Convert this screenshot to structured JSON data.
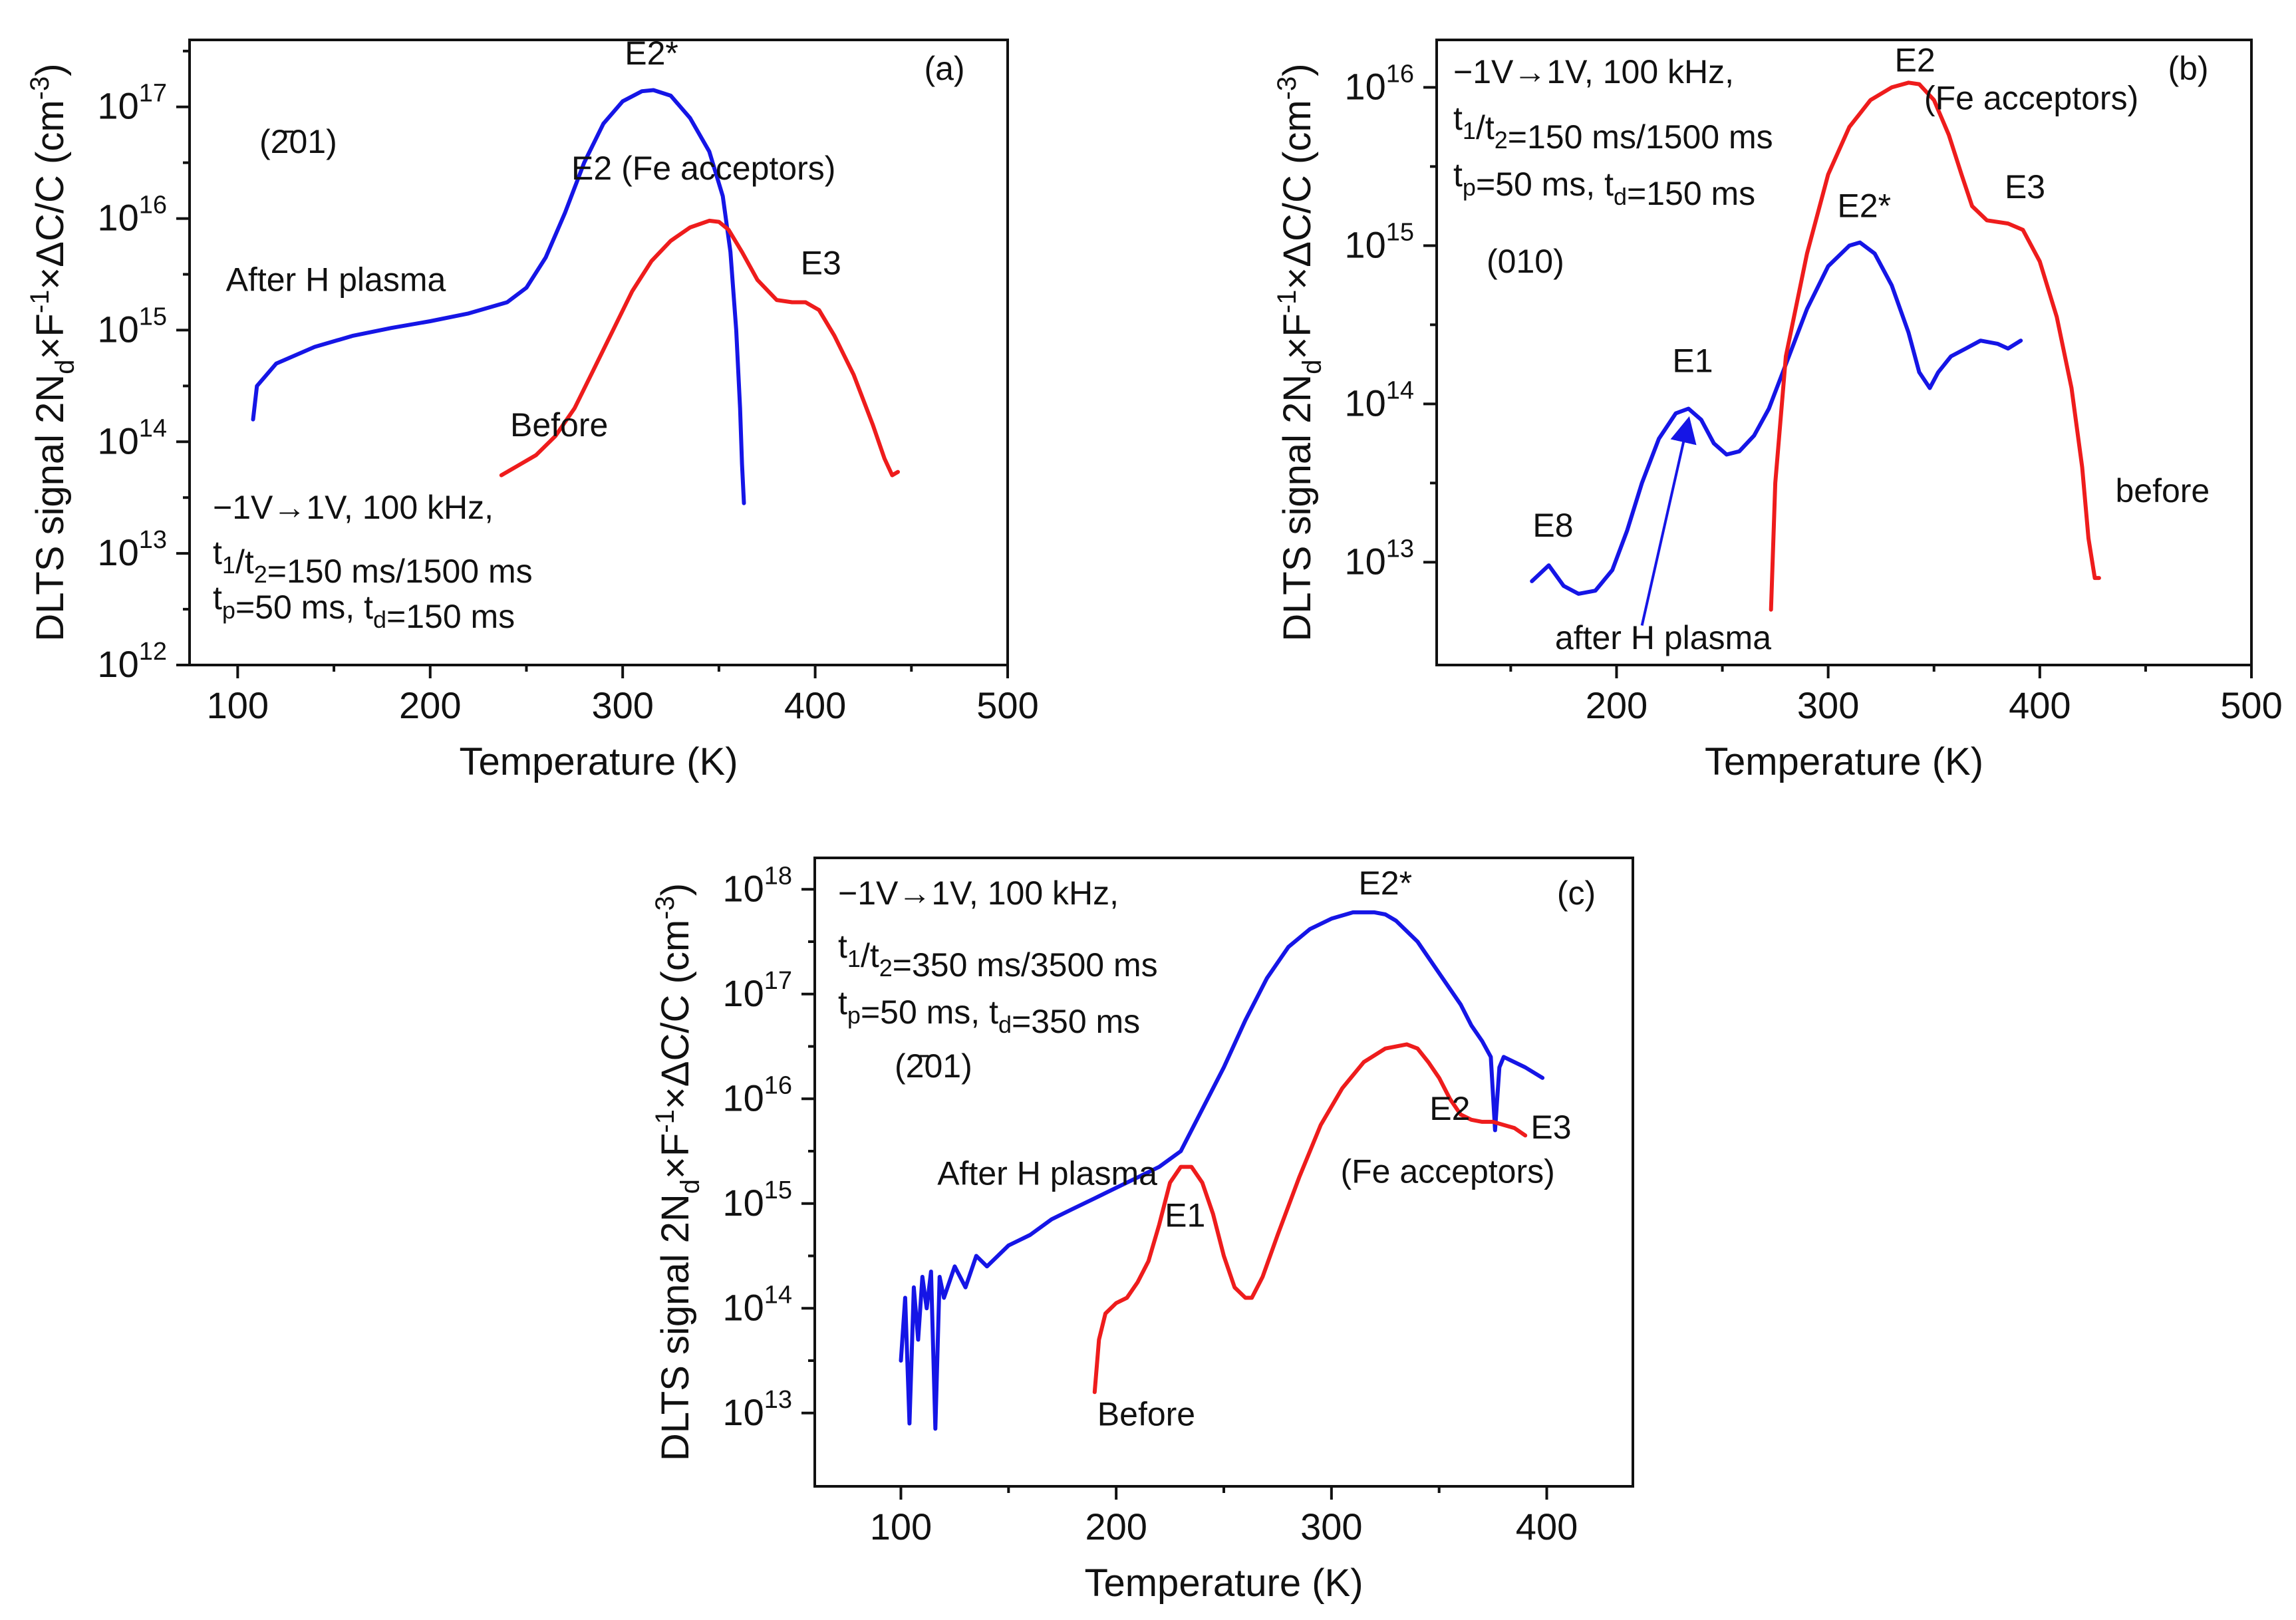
{
  "colors": {
    "blue": "#1515e6",
    "red": "#ee1c1c",
    "axis": "#111111"
  },
  "chart_data": [
    {
      "id": "a",
      "type": "line",
      "panel_label": "(a)",
      "orientation": "(2̄01)",
      "xlabel": "Temperature (K)",
      "ylabel": "DLTS signal 2N_d×F^-1×ΔC/C (cm^-3)",
      "xlim": [
        75,
        500
      ],
      "xticks": [
        100,
        200,
        300,
        400,
        500
      ],
      "ylim_log10": [
        12,
        17.6
      ],
      "yticks_log10": [
        12,
        13,
        14,
        15,
        16,
        17
      ],
      "conditions": [
        "−1V→1V, 100 kHz,",
        "t1/t2=150 ms/1500 ms",
        "tp=50 ms, td=150 ms"
      ],
      "series": [
        {
          "name": "After H plasma",
          "color": "blue",
          "x": [
            108,
            110,
            120,
            140,
            160,
            180,
            200,
            220,
            240,
            250,
            260,
            270,
            280,
            290,
            300,
            310,
            316,
            325,
            335,
            345,
            352,
            356,
            359,
            361,
            362,
            363
          ],
          "logy": [
            14.2,
            14.5,
            14.7,
            14.85,
            14.95,
            15.02,
            15.08,
            15.15,
            15.25,
            15.38,
            15.65,
            16.05,
            16.5,
            16.85,
            17.05,
            17.14,
            17.15,
            17.1,
            16.9,
            16.6,
            16.2,
            15.7,
            15.0,
            14.3,
            13.8,
            13.45
          ]
        },
        {
          "name": "Before",
          "color": "red",
          "x": [
            237,
            245,
            255,
            265,
            275,
            285,
            295,
            305,
            315,
            325,
            335,
            345,
            350,
            355,
            362,
            370,
            380,
            388,
            395,
            402,
            410,
            420,
            430,
            436,
            440,
            443
          ],
          "logy": [
            13.7,
            13.78,
            13.88,
            14.05,
            14.3,
            14.65,
            15.0,
            15.35,
            15.62,
            15.8,
            15.92,
            15.98,
            15.97,
            15.9,
            15.7,
            15.45,
            15.27,
            15.25,
            15.25,
            15.18,
            14.95,
            14.6,
            14.15,
            13.85,
            13.7,
            13.73
          ]
        }
      ],
      "annotations": [
        {
          "text": "E2*",
          "x": 315,
          "logy": 17.38,
          "color": "blue"
        },
        {
          "text": "E2 (Fe acceptors)",
          "x": 342,
          "logy": 16.35,
          "color": "red"
        },
        {
          "text": "E3",
          "x": 403,
          "logy": 15.5,
          "color": "red"
        },
        {
          "text": "After H plasma",
          "x": 151,
          "logy": 15.35,
          "color": "blue"
        },
        {
          "text": "Before",
          "x": 267,
          "logy": 14.05,
          "color": "red"
        }
      ]
    },
    {
      "id": "b",
      "type": "line",
      "panel_label": "(b)",
      "orientation": "(010)",
      "xlabel": "Temperature (K)",
      "ylabel": "DLTS signal 2N_d×F^-1×ΔC/C (cm^-3)",
      "xlim": [
        115,
        500
      ],
      "xticks": [
        200,
        300,
        400,
        500
      ],
      "ylim_log10": [
        12.35,
        16.3
      ],
      "yticks_log10": [
        13,
        14,
        15,
        16
      ],
      "conditions": [
        "−1V→1V, 100 kHz,",
        "t1/t2=150 ms/1500 ms",
        "tp=50 ms, td=150 ms"
      ],
      "series": [
        {
          "name": "after H plasma",
          "color": "blue",
          "x": [
            160,
            168,
            175,
            182,
            190,
            198,
            205,
            212,
            220,
            228,
            234,
            240,
            246,
            252,
            258,
            265,
            272,
            280,
            290,
            300,
            310,
            315,
            322,
            330,
            338,
            343,
            348,
            352,
            358,
            365,
            372,
            380,
            385,
            391
          ],
          "logy": [
            12.88,
            12.98,
            12.85,
            12.8,
            12.82,
            12.95,
            13.2,
            13.5,
            13.78,
            13.94,
            13.97,
            13.9,
            13.75,
            13.68,
            13.7,
            13.8,
            13.97,
            14.25,
            14.6,
            14.87,
            15.0,
            15.02,
            14.95,
            14.75,
            14.45,
            14.2,
            14.1,
            14.2,
            14.3,
            14.35,
            14.4,
            14.38,
            14.35,
            14.4
          ]
        },
        {
          "name": "before",
          "color": "red",
          "x": [
            273,
            275,
            280,
            290,
            300,
            310,
            320,
            330,
            338,
            343,
            350,
            357,
            363,
            368,
            375,
            385,
            392,
            400,
            408,
            415,
            420,
            423,
            426,
            428
          ],
          "logy": [
            12.7,
            13.5,
            14.3,
            14.95,
            15.45,
            15.75,
            15.92,
            16.0,
            16.03,
            16.02,
            15.92,
            15.7,
            15.45,
            15.25,
            15.16,
            15.14,
            15.1,
            14.9,
            14.55,
            14.1,
            13.6,
            13.15,
            12.9,
            12.9
          ]
        }
      ],
      "annotations": [
        {
          "text": "E2",
          "x": 341,
          "logy": 16.1,
          "color": "red"
        },
        {
          "text": "(Fe acceptors)",
          "x": 396,
          "logy": 15.86,
          "color": "red"
        },
        {
          "text": "E3",
          "x": 393,
          "logy": 15.3,
          "color": "red"
        },
        {
          "text": "E2*",
          "x": 317,
          "logy": 15.18,
          "color": "blue"
        },
        {
          "text": "E1",
          "x": 236,
          "logy": 14.2,
          "color": "blue"
        },
        {
          "text": "E8",
          "x": 170,
          "logy": 13.16,
          "color": "blue"
        },
        {
          "text": "before",
          "x": 458,
          "logy": 13.38,
          "color": "red"
        },
        {
          "text": "after H plasma",
          "x": 222,
          "logy": 12.45,
          "color": "blue"
        }
      ]
    },
    {
      "id": "c",
      "type": "line",
      "panel_label": "(c)",
      "orientation": "(2̄01)",
      "xlabel": "Temperature (K)",
      "ylabel": "DLTS signal 2N_d×F^-1×ΔC/C (cm^-3)",
      "xlim": [
        60,
        440
      ],
      "xticks": [
        100,
        200,
        300,
        400
      ],
      "ylim_log10": [
        12.3,
        18.3
      ],
      "yticks_log10": [
        13,
        14,
        15,
        16,
        17,
        18
      ],
      "conditions": [
        "−1V→1V, 100 kHz,",
        "t1/t2=350 ms/3500 ms",
        "tp=50 ms, td=350 ms"
      ],
      "series": [
        {
          "name": "After H plasma",
          "color": "blue",
          "x": [
            100,
            102,
            104,
            106,
            108,
            110,
            112,
            114,
            116,
            118,
            120,
            125,
            130,
            135,
            140,
            150,
            160,
            170,
            180,
            190,
            200,
            210,
            220,
            230,
            240,
            250,
            260,
            270,
            280,
            290,
            300,
            310,
            320,
            325,
            330,
            340,
            350,
            360,
            365,
            370,
            374,
            376,
            378,
            380,
            390,
            398
          ],
          "logy": [
            13.5,
            14.1,
            12.9,
            14.2,
            13.7,
            14.3,
            14.0,
            14.35,
            12.85,
            14.3,
            14.1,
            14.4,
            14.2,
            14.5,
            14.4,
            14.6,
            14.7,
            14.85,
            14.95,
            15.05,
            15.15,
            15.25,
            15.35,
            15.5,
            15.9,
            16.3,
            16.75,
            17.15,
            17.45,
            17.62,
            17.72,
            17.78,
            17.78,
            17.76,
            17.7,
            17.5,
            17.2,
            16.9,
            16.7,
            16.55,
            16.4,
            15.7,
            16.3,
            16.4,
            16.3,
            16.2
          ]
        },
        {
          "name": "Before",
          "color": "red",
          "x": [
            190,
            192,
            195,
            200,
            205,
            210,
            215,
            220,
            225,
            230,
            235,
            240,
            245,
            250,
            255,
            260,
            263,
            268,
            275,
            285,
            295,
            305,
            315,
            325,
            335,
            340,
            345,
            350,
            355,
            360,
            365,
            370,
            375,
            380,
            385,
            390
          ],
          "logy": [
            13.2,
            13.7,
            13.95,
            14.05,
            14.1,
            14.25,
            14.45,
            14.8,
            15.2,
            15.35,
            15.35,
            15.2,
            14.9,
            14.5,
            14.2,
            14.1,
            14.1,
            14.3,
            14.7,
            15.25,
            15.75,
            16.1,
            16.35,
            16.48,
            16.52,
            16.48,
            16.35,
            16.2,
            16.0,
            15.85,
            15.8,
            15.78,
            15.78,
            15.75,
            15.72,
            15.65
          ]
        }
      ],
      "annotations": [
        {
          "text": "E2*",
          "x": 325,
          "logy": 17.95,
          "color": "blue"
        },
        {
          "text": "E2",
          "x": 355,
          "logy": 15.8,
          "color": "red"
        },
        {
          "text": "(Fe acceptors)",
          "x": 354,
          "logy": 15.2,
          "color": "red"
        },
        {
          "text": "E3",
          "x": 402,
          "logy": 15.62,
          "color": "red"
        },
        {
          "text": "After H plasma",
          "x": 168,
          "logy": 15.18,
          "color": "blue"
        },
        {
          "text": "E1",
          "x": 232,
          "logy": 14.78,
          "color": "red"
        },
        {
          "text": "Before",
          "x": 214,
          "logy": 12.88,
          "color": "red"
        }
      ]
    }
  ]
}
